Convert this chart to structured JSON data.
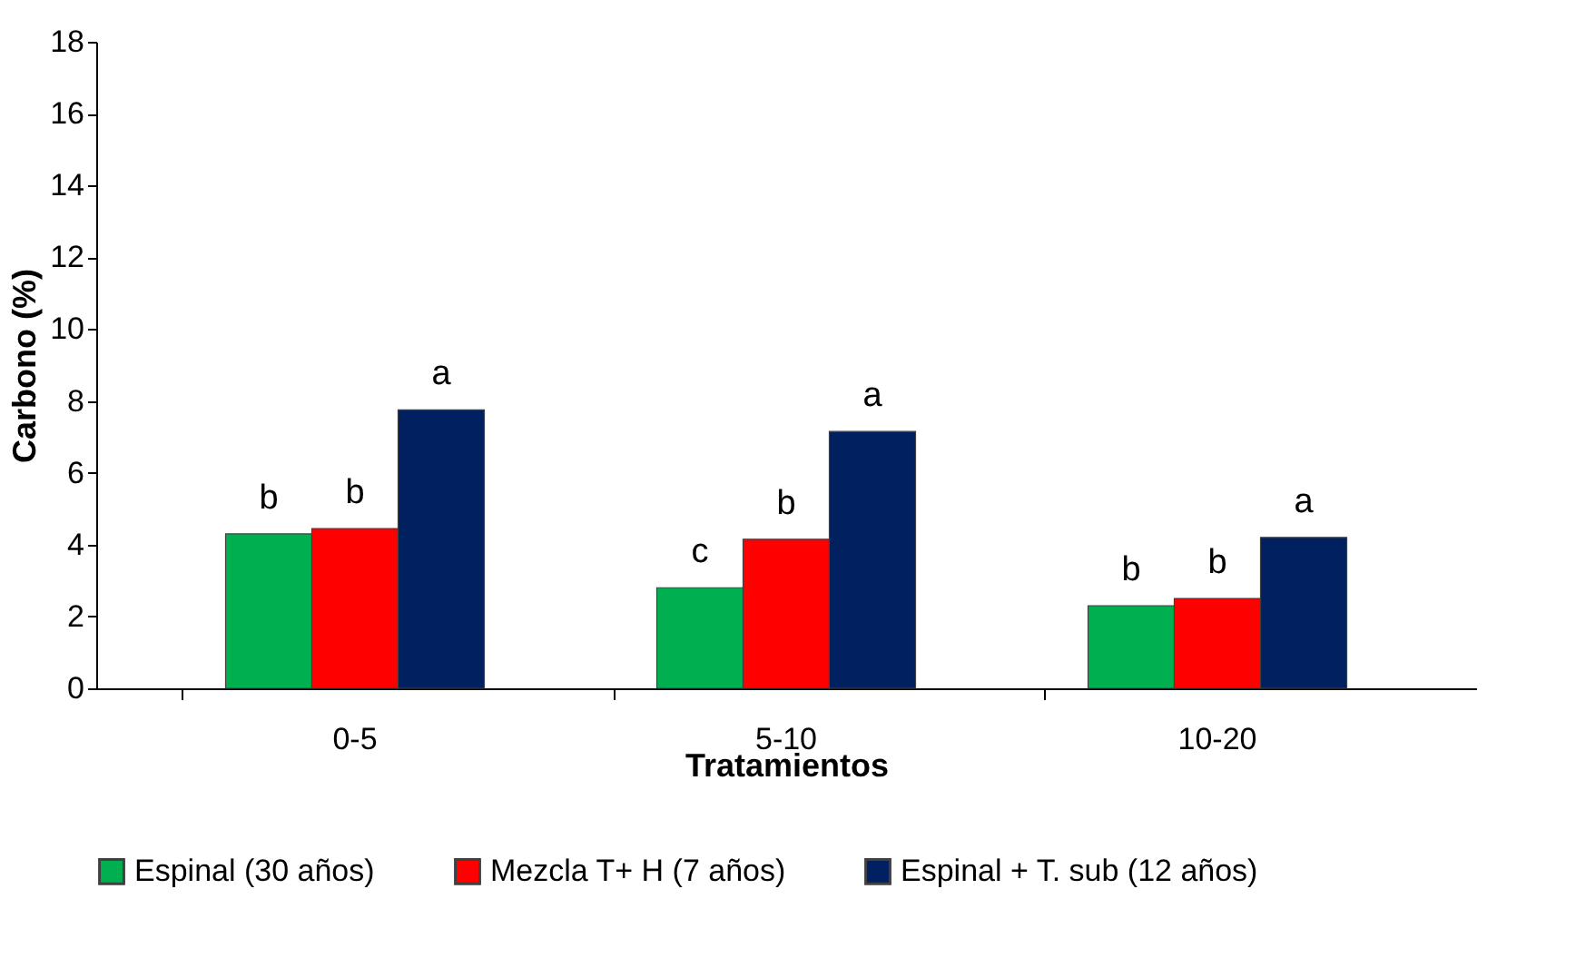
{
  "chart_data": {
    "type": "bar",
    "xlabel": "Tratamientos",
    "ylabel": "Carbono (%)",
    "categories": [
      "0-5",
      "5-10",
      "10-20"
    ],
    "series": [
      {
        "name": "Espinal (30 años)",
        "color": "#00b050",
        "values": [
          4.3,
          2.8,
          2.3
        ],
        "value_labels": [
          "b",
          "c",
          "b"
        ]
      },
      {
        "name": "Mezcla T+ H (7 años)",
        "color": "#ff0000",
        "values": [
          4.45,
          4.15,
          2.5
        ],
        "value_labels": [
          "b",
          "b",
          "b"
        ]
      },
      {
        "name": "Espinal + T. sub (12 años)",
        "color": "#002060",
        "values": [
          7.75,
          7.15,
          4.2
        ],
        "value_labels": [
          "a",
          "a",
          "a"
        ]
      }
    ],
    "ylim": [
      0,
      18
    ],
    "yticks": [
      0,
      2,
      4,
      6,
      8,
      10,
      12,
      14,
      16,
      18
    ],
    "grid": false,
    "legend": "bottom"
  }
}
